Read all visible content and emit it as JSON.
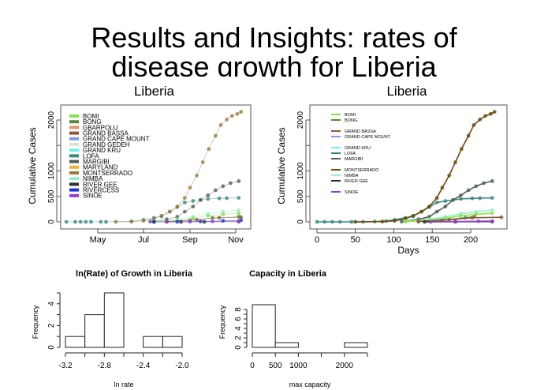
{
  "slide": {
    "title_line1": "Results and Insights: rates of",
    "title_line2": "disease growth for Liberia"
  },
  "chart_data": [
    {
      "type": "scatter",
      "title": "Liberia",
      "xlabel": "",
      "ylabel": "Cumulative Cases",
      "x_ticks": [
        "May",
        "Jul",
        "Sep",
        "Nov"
      ],
      "x_tick_dates": [
        "2014-05-01",
        "2014-07-01",
        "2014-09-01",
        "2014-11-01"
      ],
      "y_ticks": [
        0,
        500,
        1000,
        2000
      ],
      "ylim": [
        0,
        2200
      ],
      "legend_position": "top-left",
      "legend": [
        {
          "name": "BOMI",
          "color": "#8fe04a"
        },
        {
          "name": "BONG",
          "color": "#5a8a3a"
        },
        {
          "name": "GBARPOLU",
          "color": "#e8906a"
        },
        {
          "name": "GRAND BASSA",
          "color": "#8a5a3a"
        },
        {
          "name": "GRAND CAPE MOUNT",
          "color": "#7fa0e0"
        },
        {
          "name": "GRAND GEDEH",
          "color": "#e8e0d0"
        },
        {
          "name": "GRAND KRU",
          "color": "#70f0f0"
        },
        {
          "name": "LOFA",
          "color": "#3a8a80"
        },
        {
          "name": "MARGIBI",
          "color": "#50605a"
        },
        {
          "name": "MARYLAND",
          "color": "#f0b040"
        },
        {
          "name": "MONTSERRADO",
          "color": "#9a7a40"
        },
        {
          "name": "NIMBA",
          "color": "#90f0d0"
        },
        {
          "name": "RIVER GEE",
          "color": "#303030"
        },
        {
          "name": "RIVERCESS",
          "color": "#2030e0"
        },
        {
          "name": "SINOE",
          "color": "#9040d0"
        }
      ],
      "series": [
        {
          "name": "LOFA",
          "color": "#3a8a80",
          "points": [
            [
              "2014-03-20",
              0
            ],
            [
              "2014-04-01",
              0
            ],
            [
              "2014-04-08",
              0
            ],
            [
              "2014-04-15",
              0
            ],
            [
              "2014-04-22",
              0
            ],
            [
              "2014-05-05",
              0
            ],
            [
              "2014-05-12",
              0
            ],
            [
              "2014-06-15",
              10
            ],
            [
              "2014-07-01",
              40
            ],
            [
              "2014-07-15",
              80
            ],
            [
              "2014-07-25",
              110
            ],
            [
              "2014-08-05",
              200
            ],
            [
              "2014-08-15",
              290
            ],
            [
              "2014-08-25",
              380
            ],
            [
              "2014-09-05",
              410
            ],
            [
              "2014-09-15",
              430
            ],
            [
              "2014-09-25",
              450
            ],
            [
              "2014-10-10",
              460
            ],
            [
              "2014-10-20",
              465
            ],
            [
              "2014-11-05",
              470
            ]
          ]
        },
        {
          "name": "MONTSERRADO",
          "color": "#9a7a40",
          "points": [
            [
              "2014-05-25",
              0
            ],
            [
              "2014-06-15",
              5
            ],
            [
              "2014-07-01",
              20
            ],
            [
              "2014-07-15",
              60
            ],
            [
              "2014-07-25",
              120
            ],
            [
              "2014-08-05",
              200
            ],
            [
              "2014-08-15",
              300
            ],
            [
              "2014-08-25",
              470
            ],
            [
              "2014-09-01",
              670
            ],
            [
              "2014-09-10",
              910
            ],
            [
              "2014-09-18",
              1170
            ],
            [
              "2014-09-26",
              1430
            ],
            [
              "2014-10-05",
              1690
            ],
            [
              "2014-10-12",
              1900
            ],
            [
              "2014-10-20",
              2010
            ],
            [
              "2014-10-27",
              2080
            ],
            [
              "2014-11-03",
              2120
            ],
            [
              "2014-11-08",
              2160
            ]
          ]
        },
        {
          "name": "MARGIBI",
          "color": "#50605a",
          "points": [
            [
              "2014-07-10",
              5
            ],
            [
              "2014-08-01",
              50
            ],
            [
              "2014-08-15",
              100
            ],
            [
              "2014-08-25",
              200
            ],
            [
              "2014-09-05",
              300
            ],
            [
              "2014-09-15",
              430
            ],
            [
              "2014-09-25",
              520
            ],
            [
              "2014-10-05",
              620
            ],
            [
              "2014-10-15",
              700
            ],
            [
              "2014-10-25",
              760
            ],
            [
              "2014-11-05",
              800
            ]
          ]
        },
        {
          "name": "NIMBA",
          "color": "#90f0d0",
          "points": [
            [
              "2014-07-15",
              10
            ],
            [
              "2014-08-15",
              50
            ],
            [
              "2014-09-05",
              100
            ],
            [
              "2014-09-25",
              160
            ],
            [
              "2014-10-15",
              200
            ],
            [
              "2014-11-05",
              230
            ]
          ]
        },
        {
          "name": "BOMI",
          "color": "#8fe04a",
          "points": [
            [
              "2014-07-15",
              5
            ],
            [
              "2014-08-15",
              30
            ],
            [
              "2014-09-05",
              70
            ],
            [
              "2014-09-25",
              120
            ],
            [
              "2014-10-15",
              150
            ],
            [
              "2014-11-05",
              170
            ]
          ]
        },
        {
          "name": "BONG",
          "color": "#5a8a3a",
          "points": [
            [
              "2014-08-01",
              5
            ],
            [
              "2014-09-01",
              30
            ],
            [
              "2014-10-01",
              80
            ],
            [
              "2014-11-05",
              100
            ]
          ]
        },
        {
          "name": "GRAND BASSA",
          "color": "#8a5a3a",
          "points": [
            [
              "2014-08-01",
              5
            ],
            [
              "2014-09-10",
              40
            ],
            [
              "2014-10-10",
              80
            ],
            [
              "2014-11-08",
              90
            ]
          ]
        },
        {
          "name": "RIVER GEE",
          "color": "#303030",
          "points": [
            [
              "2014-07-15",
              0
            ],
            [
              "2014-08-20",
              0
            ],
            [
              "2014-09-20",
              2
            ],
            [
              "2014-11-05",
              5
            ]
          ]
        },
        {
          "name": "RIVERCESS",
          "color": "#2030e0",
          "points": [
            [
              "2014-07-15",
              0
            ],
            [
              "2014-08-15",
              2
            ],
            [
              "2014-09-15",
              8
            ],
            [
              "2014-10-15",
              20
            ],
            [
              "2014-11-08",
              30
            ]
          ]
        },
        {
          "name": "SINOE",
          "color": "#9040d0",
          "points": [
            [
              "2014-08-01",
              0
            ],
            [
              "2014-09-01",
              3
            ],
            [
              "2014-10-01",
              8
            ],
            [
              "2014-11-05",
              15
            ]
          ]
        }
      ]
    },
    {
      "type": "line",
      "title": "Liberia",
      "xlabel": "Days",
      "ylabel": "Cumulative Cases",
      "x_ticks": [
        0,
        50,
        100,
        150,
        200
      ],
      "y_ticks": [
        0,
        500,
        1000,
        2000
      ],
      "xlim": [
        -5,
        250
      ],
      "ylim": [
        0,
        2200
      ],
      "legend_position": "top-left",
      "legend": [
        {
          "name": "BOMI",
          "color": "#8fe04a"
        },
        {
          "name": "BONG",
          "color": "#5a8a3a"
        },
        {
          "name": "",
          "color": ""
        },
        {
          "name": "GRAND BASSA",
          "color": "#8a5a3a"
        },
        {
          "name": "GRAND CAPE MOUNT",
          "color": "#7fa0e0"
        },
        {
          "name": "",
          "color": ""
        },
        {
          "name": "GRAND KRU",
          "color": "#70f0f0"
        },
        {
          "name": "LOFA",
          "color": "#3a8a80"
        },
        {
          "name": "MARGIBI",
          "color": "#50605a"
        },
        {
          "name": "",
          "color": ""
        },
        {
          "name": "MONTSERRADO",
          "color": "#6a4a10"
        },
        {
          "name": "NIMBA",
          "color": "#90f0d0"
        },
        {
          "name": "RIVER GEE",
          "color": "#303030"
        },
        {
          "name": "",
          "color": ""
        },
        {
          "name": "SINOE",
          "color": "#9040d0"
        }
      ],
      "series": [
        {
          "name": "LOFA",
          "color": "#3a8a80",
          "points": [
            [
              0,
              0
            ],
            [
              10,
              0
            ],
            [
              20,
              0
            ],
            [
              30,
              0
            ],
            [
              45,
              0
            ],
            [
              60,
              0
            ],
            [
              75,
              5
            ],
            [
              90,
              15
            ],
            [
              101,
              40
            ],
            [
              115,
              80
            ],
            [
              125,
              110
            ],
            [
              136,
              200
            ],
            [
              146,
              290
            ],
            [
              156,
              380
            ],
            [
              167,
              410
            ],
            [
              177,
              430
            ],
            [
              187,
              450
            ],
            [
              202,
              460
            ],
            [
              212,
              465
            ],
            [
              228,
              470
            ]
          ]
        },
        {
          "name": "MONTSERRADO",
          "color": "#6a4a10",
          "points": [
            [
              50,
              0
            ],
            [
              85,
              5
            ],
            [
              101,
              20
            ],
            [
              115,
              60
            ],
            [
              125,
              120
            ],
            [
              136,
              200
            ],
            [
              146,
              300
            ],
            [
              156,
              470
            ],
            [
              163,
              670
            ],
            [
              172,
              910
            ],
            [
              180,
              1170
            ],
            [
              188,
              1430
            ],
            [
              197,
              1690
            ],
            [
              204,
              1900
            ],
            [
              212,
              2010
            ],
            [
              219,
              2080
            ],
            [
              226,
              2120
            ],
            [
              231,
              2160
            ]
          ]
        },
        {
          "name": "MARGIBI",
          "color": "#50605a",
          "points": [
            [
              110,
              5
            ],
            [
              132,
              50
            ],
            [
              146,
              100
            ],
            [
              156,
              200
            ],
            [
              167,
              300
            ],
            [
              177,
              430
            ],
            [
              187,
              520
            ],
            [
              197,
              620
            ],
            [
              207,
              700
            ],
            [
              217,
              760
            ],
            [
              228,
              800
            ]
          ]
        },
        {
          "name": "NIMBA",
          "color": "#90f0d0",
          "points": [
            [
              115,
              10
            ],
            [
              146,
              50
            ],
            [
              167,
              100
            ],
            [
              187,
              160
            ],
            [
              207,
              200
            ],
            [
              228,
              230
            ]
          ]
        },
        {
          "name": "BOMI",
          "color": "#8fe04a",
          "points": [
            [
              115,
              5
            ],
            [
              146,
              30
            ],
            [
              167,
              70
            ],
            [
              187,
              120
            ],
            [
              207,
              150
            ],
            [
              228,
              170
            ]
          ]
        },
        {
          "name": "BONG",
          "color": "#5a8a3a",
          "points": [
            [
              132,
              5
            ],
            [
              163,
              30
            ],
            [
              193,
              80
            ],
            [
              205,
              100
            ]
          ]
        },
        {
          "name": "GRAND BASSA",
          "color": "#8a5a3a",
          "points": [
            [
              132,
              5
            ],
            [
              172,
              40
            ],
            [
              202,
              80
            ],
            [
              240,
              90
            ]
          ]
        },
        {
          "name": "RIVER GEE",
          "color": "#303030",
          "points": [
            [
              140,
              0
            ],
            [
              180,
              2
            ],
            [
              228,
              5
            ]
          ]
        },
        {
          "name": "SINOE",
          "color": "#9040d0",
          "points": [
            [
              148,
              0
            ],
            [
              180,
              5
            ],
            [
              210,
              12
            ],
            [
              228,
              15
            ]
          ]
        }
      ]
    },
    {
      "type": "bar",
      "title": "ln(Rate) of Growth in Liberia",
      "xlabel": "ln rate",
      "ylabel": "Frequency",
      "bin_edges": [
        -3.2,
        -3.0,
        -2.8,
        -2.6,
        -2.4,
        -2.2,
        -2.0
      ],
      "values": [
        1,
        3,
        5,
        0,
        1,
        1
      ],
      "x_ticks": [
        -3.2,
        -3.0,
        -2.8,
        -2.6,
        -2.4,
        -2.2,
        -2.0
      ],
      "x_tick_labels": [
        "-3.2",
        "",
        "-2.8",
        "",
        "-2.4",
        "",
        "-2.0"
      ],
      "y_ticks": [
        0,
        2,
        4
      ],
      "ylim": [
        0,
        5
      ]
    },
    {
      "type": "bar",
      "title": "Capacity in Liberia",
      "xlabel": "max capacity",
      "ylabel": "Frequency",
      "bin_edges": [
        0,
        500,
        1000,
        1500,
        2000,
        2500
      ],
      "values": [
        9,
        1,
        0,
        0,
        1
      ],
      "x_ticks": [
        0,
        500,
        1000,
        1500,
        2000,
        2500
      ],
      "x_tick_labels": [
        "0",
        "500",
        "1000",
        "",
        "2000",
        ""
      ],
      "y_ticks": [
        0,
        2,
        4,
        6,
        8
      ],
      "ylim": [
        0,
        9
      ]
    }
  ]
}
